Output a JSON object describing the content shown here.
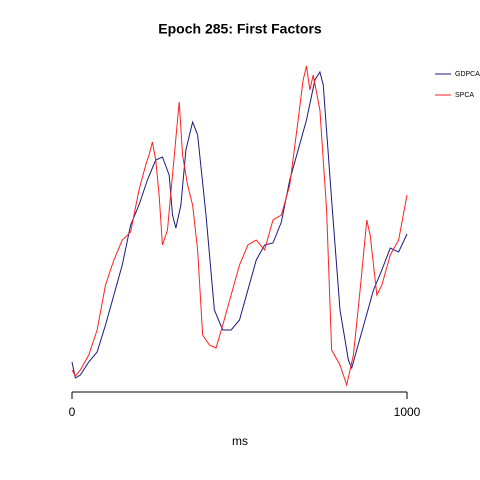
{
  "chart_data": {
    "type": "line",
    "title": "Epoch 285: First Factors",
    "xlabel": "ms",
    "xlim": [
      0,
      1000
    ],
    "xticks": [
      0,
      1000
    ],
    "ylim": [
      0,
      330
    ],
    "legend": "top-right",
    "series": [
      {
        "name": "GDPCA",
        "color": "#1a1a80",
        "x": [
          0,
          10,
          25,
          50,
          75,
          100,
          125,
          150,
          175,
          200,
          225,
          250,
          270,
          290,
          300,
          310,
          325,
          340,
          360,
          375,
          400,
          425,
          450,
          475,
          500,
          525,
          550,
          575,
          600,
          625,
          650,
          675,
          700,
          725,
          740,
          750,
          775,
          800,
          825,
          835,
          850,
          875,
          900,
          925,
          950,
          975,
          1000
        ],
        "values": [
          30,
          14,
          17,
          30,
          40,
          67,
          97,
          127,
          167,
          187,
          212,
          232,
          235,
          217,
          177,
          164,
          187,
          242,
          270,
          257,
          177,
          82,
          62,
          62,
          72,
          102,
          132,
          147,
          149,
          170,
          212,
          242,
          272,
          312,
          320,
          307,
          192,
          82,
          32,
          24,
          42,
          72,
          102,
          122,
          144,
          140,
          158
        ]
      },
      {
        "name": "SPCA",
        "color": "#ff2020",
        "x": [
          0,
          10,
          25,
          50,
          75,
          100,
          125,
          150,
          175,
          200,
          220,
          230,
          240,
          250,
          260,
          270,
          285,
          300,
          320,
          330,
          345,
          360,
          375,
          390,
          410,
          430,
          450,
          475,
          500,
          525,
          550,
          575,
          600,
          625,
          650,
          675,
          690,
          700,
          710,
          720,
          740,
          760,
          775,
          800,
          820,
          840,
          860,
          880,
          890,
          910,
          925,
          950,
          975,
          1000
        ],
        "values": [
          22,
          16,
          22,
          37,
          62,
          107,
          132,
          152,
          160,
          202,
          227,
          237,
          250,
          232,
          197,
          147,
          162,
          217,
          290,
          237,
          207,
          187,
          142,
          57,
          47,
          44,
          67,
          97,
          127,
          147,
          152,
          142,
          172,
          177,
          207,
          272,
          312,
          326,
          302,
          317,
          282,
          182,
          42,
          27,
          7,
          37,
          102,
          172,
          157,
          97,
          107,
          137,
          152,
          197
        ]
      }
    ]
  }
}
